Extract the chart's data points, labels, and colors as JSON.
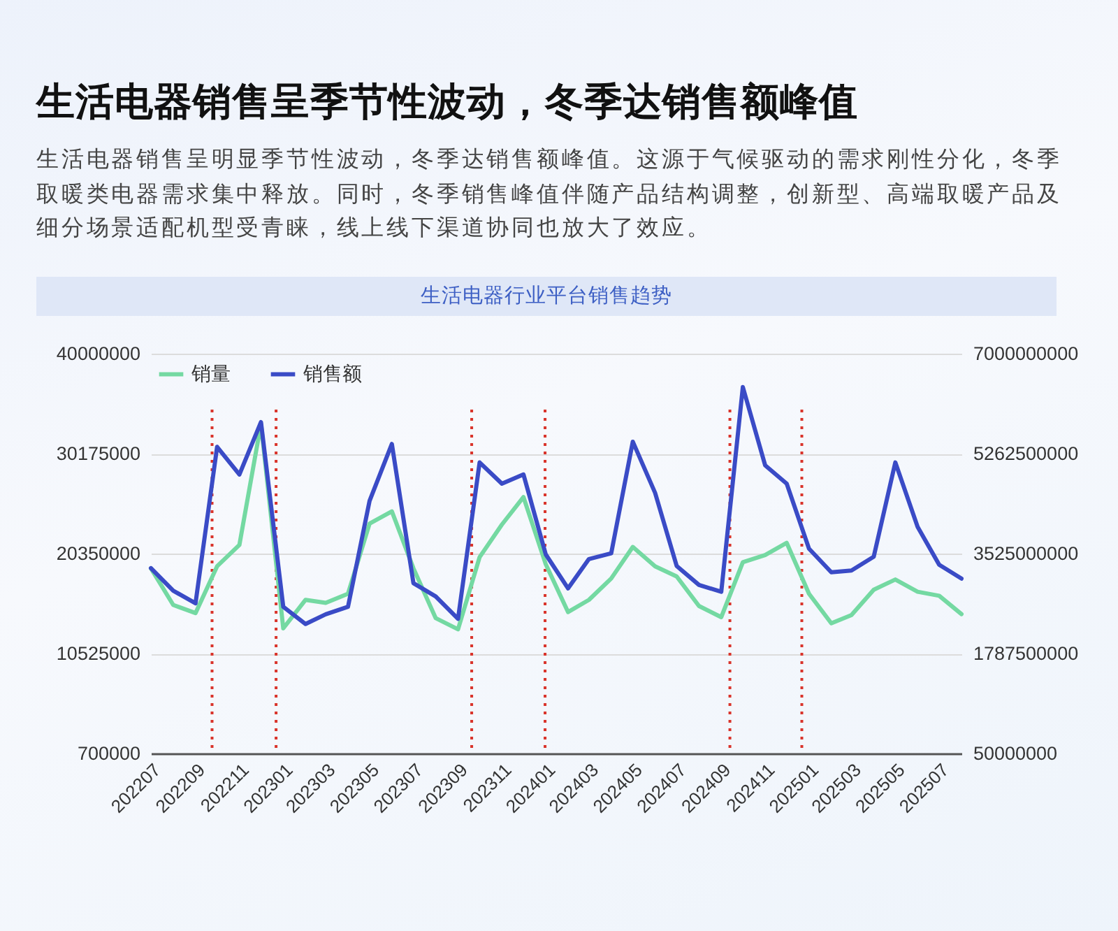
{
  "chart_data": {
    "type": "line",
    "title": "生活电器销售呈季节性波动，冬季达销售额峰值",
    "subtitle": "生活电器销售呈明显季节性波动，冬季达销售额峰值。这源于气候驱动的需求刚性分化，冬季取暖类电器需求集中释放。同时，冬季销售峰值伴随产品结构调整，创新型、高端取暖产品及细分场景适配机型受青睐，线上线下渠道协同也放大了效应。",
    "annotations": [
      "生活电器行业平台销售趋势"
    ],
    "x": [
      "2022-07",
      "2022-08",
      "2022-09",
      "2022-10",
      "2022-11",
      "2022-12",
      "2023-01",
      "2023-02",
      "2023-03",
      "2023-04",
      "2023-05",
      "2023-06",
      "2023-07",
      "2023-08",
      "2023-09",
      "2023-10",
      "2023-11",
      "2023-12",
      "2024-01",
      "2024-02",
      "2024-03",
      "2024-04",
      "2024-05",
      "2024-06",
      "2024-07",
      "2024-08",
      "2024-09",
      "2024-10",
      "2024-11",
      "2024-12",
      "2025-01",
      "2025-02",
      "2025-03",
      "2025-04",
      "2025-05",
      "2025-06",
      "2025-07",
      "2025-08"
    ],
    "xlim": [
      "2022-07",
      "2025-08"
    ],
    "xticks": [
      {
        "value": "2022-07",
        "label": "202207"
      },
      {
        "value": "2022-09",
        "label": "202209"
      },
      {
        "value": "2022-11",
        "label": "202211"
      },
      {
        "value": "2023-01",
        "label": "202301"
      },
      {
        "value": "2023-03",
        "label": "202303"
      },
      {
        "value": "2023-05",
        "label": "202305"
      },
      {
        "value": "2023-07",
        "label": "202307"
      },
      {
        "value": "2023-09",
        "label": "202309"
      },
      {
        "value": "2023-11",
        "label": "202311"
      },
      {
        "value": "2024-01",
        "label": "202401"
      },
      {
        "value": "2024-03",
        "label": "202403"
      },
      {
        "value": "2024-05",
        "label": "202405"
      },
      {
        "value": "2024-07",
        "label": "202407"
      },
      {
        "value": "2024-09",
        "label": "202409"
      },
      {
        "value": "2024-11",
        "label": "202411"
      },
      {
        "value": "2025-01",
        "label": "202501"
      },
      {
        "value": "2025-03",
        "label": "202503"
      },
      {
        "value": "2025-05",
        "label": "202505"
      },
      {
        "value": "2025-07",
        "label": "202507"
      }
    ],
    "series": [
      {
        "name": "销量",
        "color": "#74d9a2",
        "values": [
          18900000,
          15300000,
          14500000,
          19100000,
          21200000,
          33100000,
          13000000,
          15800000,
          15500000,
          16400000,
          23300000,
          24500000,
          18900000,
          14000000,
          12900000,
          20000000,
          23200000,
          25900000,
          19300000,
          14600000,
          15800000,
          17900000,
          21000000,
          19100000,
          18100000,
          15200000,
          14100000,
          19500000,
          20200000,
          21400000,
          16400000,
          13500000,
          14300000,
          16800000,
          17800000,
          16600000,
          16200000,
          14400000
        ]
      },
      {
        "name": "销售额",
        "color": "#3a4bc6",
        "axis": "y2",
        "values": [
          3270000000,
          2880000000,
          2660000000,
          5380000000,
          4900000000,
          5810000000,
          2600000000,
          2300000000,
          2470000000,
          2600000000,
          4440000000,
          5430000000,
          3010000000,
          2780000000,
          2390000000,
          5110000000,
          4740000000,
          4900000000,
          3510000000,
          2920000000,
          3430000000,
          3530000000,
          5470000000,
          4580000000,
          3310000000,
          2980000000,
          2860000000,
          6420000000,
          5060000000,
          4740000000,
          3610000000,
          3200000000,
          3230000000,
          3470000000,
          5110000000,
          3990000000,
          3330000000,
          3090000000
        ]
      }
    ],
    "ylim": [
      700000,
      40000000
    ],
    "yticks": [
      700000,
      10525000,
      20350000,
      30175000,
      40000000
    ],
    "y2lim": [
      50000000,
      7000000000
    ],
    "y2ticks": [
      50000000,
      1787500000,
      3525000000,
      5262500000,
      7000000000
    ],
    "grid": "y",
    "legend": "top left",
    "ref_lines": [
      {
        "axis": "x",
        "value": "2022-09-24",
        "color": "#d9342b",
        "line_style": "dotted"
      },
      {
        "axis": "x",
        "value": "2022-12-22",
        "color": "#d9342b",
        "line_style": "dotted"
      },
      {
        "axis": "x",
        "value": "2023-09-20",
        "color": "#d9342b",
        "line_style": "dotted"
      },
      {
        "axis": "x",
        "value": "2023-12-31",
        "color": "#d9342b",
        "line_style": "dotted"
      },
      {
        "axis": "x",
        "value": "2024-09-13",
        "color": "#d9342b",
        "line_style": "dotted"
      },
      {
        "axis": "x",
        "value": "2024-12-22",
        "color": "#d9342b",
        "line_style": "dotted"
      }
    ]
  }
}
